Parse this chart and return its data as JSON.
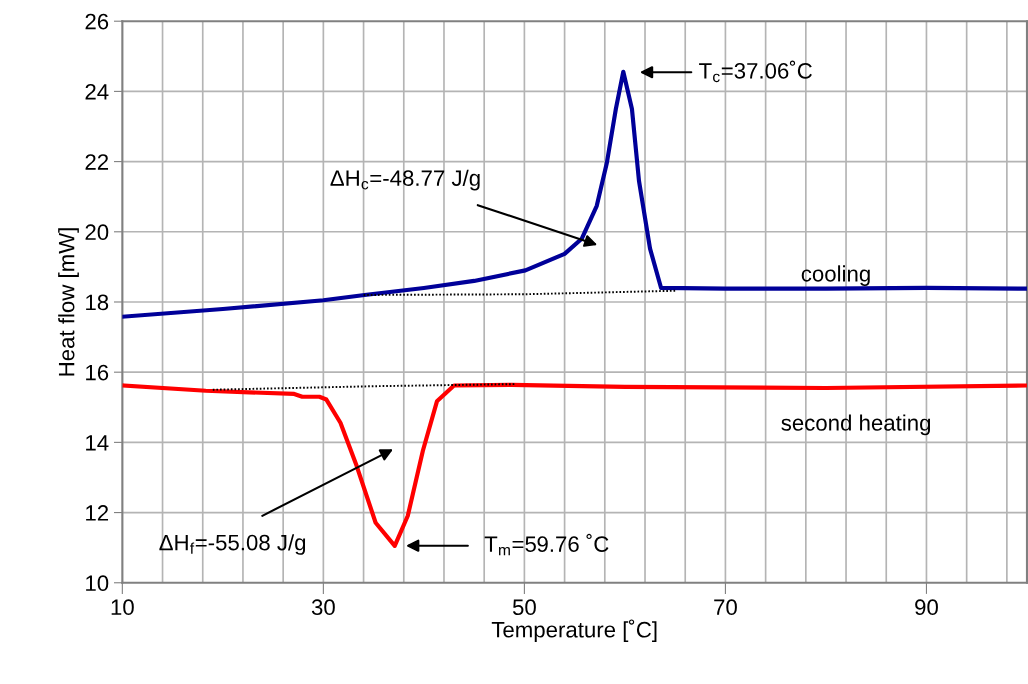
{
  "chart_data": {
    "type": "line",
    "xlabel": "Temperature [˚C]",
    "ylabel": "Heat flow [mW]",
    "xlim": [
      10,
      100
    ],
    "ylim": [
      10,
      26
    ],
    "xticks": [
      10,
      {
        "value": 14,
        "label": null
      },
      {
        "value": 18,
        "label": null
      },
      {
        "value": 22,
        "label": null
      },
      {
        "value": 26,
        "label": null
      },
      30,
      {
        "value": 34,
        "label": null
      },
      {
        "value": 38,
        "label": null
      },
      {
        "value": 42,
        "label": null
      },
      {
        "value": 46,
        "label": null
      },
      50,
      {
        "value": 54,
        "label": null
      },
      {
        "value": 58,
        "label": null
      },
      {
        "value": 62,
        "label": null
      },
      {
        "value": 66,
        "label": null
      },
      70,
      {
        "value": 74,
        "label": null
      },
      {
        "value": 78,
        "label": null
      },
      {
        "value": 82,
        "label": null
      },
      {
        "value": 86,
        "label": null
      },
      90,
      {
        "value": 94,
        "label": null
      },
      {
        "value": 98,
        "label": null
      }
    ],
    "yticks": [
      10,
      12,
      14,
      16,
      18,
      20,
      22,
      24,
      26
    ],
    "grid": true,
    "legend": false,
    "marker": "none",
    "series": [
      {
        "name": "cooling",
        "color": "#000099",
        "line_style": "solid",
        "x": [
          10,
          20,
          30,
          34.1,
          40,
          45,
          50.1,
          54,
          55.7,
          57.2,
          58.2,
          59.1,
          59.84,
          60.7,
          61.4,
          62.5,
          63.6,
          70,
          80,
          90,
          100
        ],
        "values": [
          17.58,
          17.8,
          18.05,
          18.2,
          18.4,
          18.6,
          18.9,
          19.37,
          19.8,
          20.74,
          21.96,
          23.5,
          24.56,
          23.5,
          21.45,
          19.52,
          18.4,
          18.38,
          18.38,
          18.4,
          18.38
        ]
      },
      {
        "name": "second heating",
        "color": "#ff0000",
        "line_style": "solid",
        "x": [
          10.2,
          18.3,
          27.1,
          27.9,
          29.6,
          30.3,
          31.7,
          33.3,
          35.2,
          37.1,
          38.4,
          39.9,
          41.3,
          43.0,
          48.7,
          60,
          80,
          100
        ],
        "values": [
          15.62,
          15.47,
          15.38,
          15.3,
          15.3,
          15.22,
          14.56,
          13.34,
          11.71,
          11.05,
          11.91,
          13.76,
          15.17,
          15.62,
          15.64,
          15.58,
          15.55,
          15.62
        ]
      },
      {
        "color": "#000000",
        "line_style": "dotted",
        "x": [
          34,
          50,
          65
        ],
        "values": [
          18.2,
          18.22,
          18.32
        ]
      },
      {
        "color": "#000000",
        "line_style": "dotted",
        "x": [
          19,
          35,
          49
        ],
        "values": [
          15.5,
          15.6,
          15.66
        ]
      }
    ],
    "annotations": [
      "T$_{c}$=37.06˚C",
      "ΔH$_{c}$=-48.77 J/g",
      "ΔH$_{f}$=-55.08 J/g",
      "T$_{m}$=59.76 ˚C"
    ]
  }
}
